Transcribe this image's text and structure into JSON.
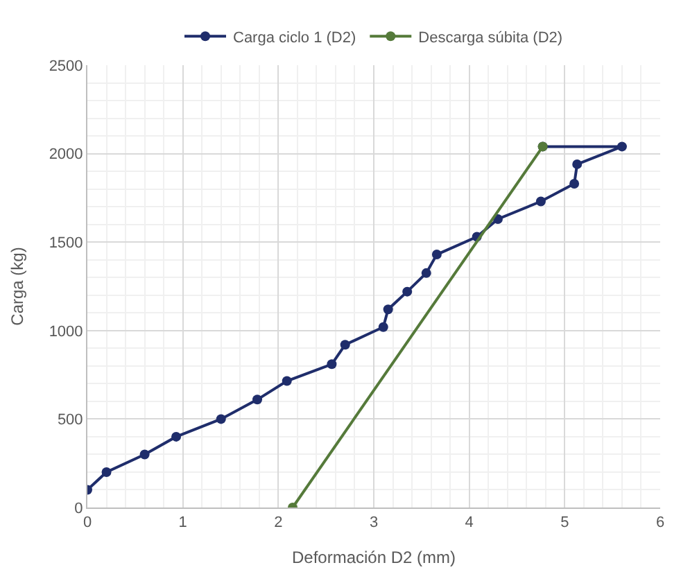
{
  "chart_data": {
    "type": "line",
    "xlabel": "Deformación D2 (mm)",
    "ylabel": "Carga (kg)",
    "xlim": [
      0,
      6
    ],
    "xticks": [
      0,
      1,
      2,
      3,
      4,
      5,
      6
    ],
    "ylim": [
      0,
      2500
    ],
    "yticks": [
      0,
      500,
      1000,
      1500,
      2000,
      2500
    ],
    "grid": true,
    "legend": "top",
    "marker": "circle",
    "line_style": "solid",
    "series": [
      {
        "name": "Carga ciclo 1 (D2)",
        "color": "#1f2d6b",
        "x": [
          0,
          0.2,
          0.6,
          0.93,
          1.4,
          1.78,
          2.09,
          2.56,
          2.7,
          3.1,
          3.15,
          3.35,
          3.55,
          3.66,
          4.08,
          4.3,
          4.75,
          5.1,
          5.13,
          5.6,
          4.77
        ],
        "values": [
          100,
          200,
          300,
          400,
          500,
          610,
          715,
          810,
          920,
          1020,
          1120,
          1220,
          1325,
          1430,
          1530,
          1630,
          1730,
          1830,
          1940,
          2040,
          2040
        ]
      },
      {
        "name": "Descarga súbita (D2)",
        "color": "#557a3a",
        "x": [
          4.77,
          2.15
        ],
        "values": [
          2040,
          0
        ]
      }
    ]
  }
}
